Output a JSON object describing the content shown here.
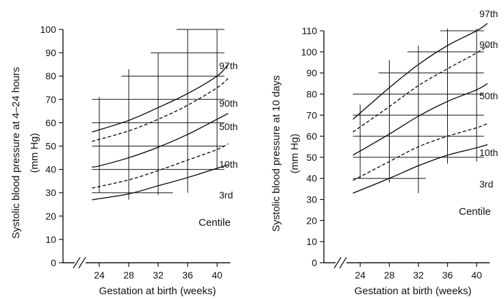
{
  "chart_data": [
    {
      "type": "line",
      "ylabel_line1": "Systolic blood pressure at 4–24 hours",
      "ylabel_line2": "(mm Hg)",
      "xlabel": "Gestation at birth (weeks)",
      "ylim": [
        0,
        100
      ],
      "yticks": [
        0,
        10,
        20,
        30,
        40,
        50,
        60,
        70,
        80,
        90,
        100
      ],
      "xticks": [
        24,
        28,
        32,
        36,
        40
      ],
      "axis_break": true,
      "legend_title": "Centile",
      "series": [
        {
          "name": "3rd",
          "style": "solid",
          "x": [
            23,
            28,
            32,
            36,
            40,
            41.5
          ],
          "y": [
            27,
            29.5,
            33,
            36.5,
            40.5,
            42
          ]
        },
        {
          "name": "10th",
          "style": "dashed",
          "x": [
            23,
            28,
            32,
            36,
            40,
            41.5
          ],
          "y": [
            32,
            35.5,
            39.5,
            44,
            48.5,
            51
          ]
        },
        {
          "name": "50th",
          "style": "solid",
          "x": [
            23,
            24,
            28,
            32,
            36,
            40,
            41.5
          ],
          "y": [
            41,
            41.5,
            45,
            49.5,
            55,
            61.5,
            64
          ]
        },
        {
          "name": "90th",
          "style": "dashed",
          "x": [
            23,
            28,
            32,
            36,
            40,
            41.5
          ],
          "y": [
            52,
            56.5,
            61.5,
            67.5,
            75,
            79
          ]
        },
        {
          "name": "97th",
          "style": "solid",
          "x": [
            23,
            28,
            32,
            36,
            40,
            41.5
          ],
          "y": [
            56,
            61,
            66.5,
            72.5,
            80,
            85
          ]
        }
      ]
    },
    {
      "type": "line",
      "ylabel_line1": "Systolic blood pressure at 10 days",
      "ylabel_line2": "(mm Hg)",
      "xlabel": "Gestation at birth (weeks)",
      "ylim": [
        0,
        110
      ],
      "yticks": [
        0,
        10,
        20,
        30,
        40,
        50,
        60,
        70,
        80,
        90,
        100,
        110
      ],
      "xticks": [
        24,
        28,
        32,
        36,
        40
      ],
      "axis_break": true,
      "legend_title": "Centile",
      "series": [
        {
          "name": "3rd",
          "style": "solid",
          "x": [
            23,
            28,
            32,
            36,
            40,
            41.5
          ],
          "y": [
            33,
            40,
            46,
            51,
            54.5,
            56
          ]
        },
        {
          "name": "10th",
          "style": "dashed",
          "x": [
            23,
            28,
            32,
            36,
            40,
            41.5
          ],
          "y": [
            39,
            48,
            55,
            60,
            64,
            66
          ]
        },
        {
          "name": "50th",
          "style": "solid",
          "x": [
            23,
            28,
            32,
            36,
            40,
            41.5
          ],
          "y": [
            51,
            61,
            69.5,
            76.5,
            82,
            85
          ]
        },
        {
          "name": "90th",
          "style": "dashed",
          "x": [
            23,
            28,
            32,
            36,
            40,
            41.5
          ],
          "y": [
            62,
            74,
            84,
            92,
            99.5,
            103
          ]
        },
        {
          "name": "97th",
          "style": "solid",
          "x": [
            23,
            28,
            32,
            36,
            40,
            41.5
          ],
          "y": [
            68,
            83,
            94,
            103,
            110,
            113.5
          ]
        }
      ]
    }
  ]
}
